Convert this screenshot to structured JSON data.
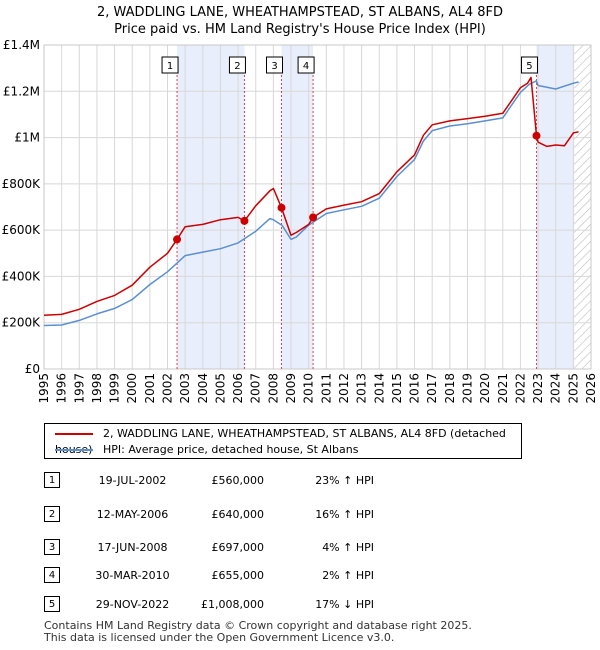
{
  "title": "2, WADDLING LANE, WHEATHAMPSTEAD, ST ALBANS, AL4 8FD",
  "subtitle": "Price paid vs. HM Land Registry's House Price Index (HPI)",
  "chart_data": {
    "type": "line",
    "title": "2, WADDLING LANE, WHEATHAMPSTEAD, ST ALBANS, AL4 8FD",
    "subtitle": "Price paid vs. HM Land Registry's House Price Index (HPI)",
    "xlim": [
      1995,
      2026
    ],
    "ylim": [
      0,
      1400000
    ],
    "x_ticks": [
      1995,
      1996,
      1997,
      1998,
      1999,
      2000,
      2001,
      2002,
      2003,
      2004,
      2005,
      2006,
      2007,
      2008,
      2009,
      2010,
      2011,
      2012,
      2013,
      2014,
      2015,
      2016,
      2017,
      2018,
      2019,
      2020,
      2021,
      2022,
      2023,
      2024,
      2025,
      2026
    ],
    "y_ticks": [
      {
        "value": 0,
        "label": "£0"
      },
      {
        "value": 200000,
        "label": "£200K"
      },
      {
        "value": 400000,
        "label": "£400K"
      },
      {
        "value": 600000,
        "label": "£600K"
      },
      {
        "value": 800000,
        "label": "£800K"
      },
      {
        "value": 1000000,
        "label": "£1M"
      },
      {
        "value": 1200000,
        "label": "£1.2M"
      },
      {
        "value": 1400000,
        "label": "£1.4M"
      }
    ],
    "grid": true,
    "colors": {
      "property": "#cc0000",
      "hpi": "#5b8fd0",
      "band": "#e8eefb",
      "vline": "#dd4444",
      "hatch": "#bbbbbb"
    },
    "series": [
      {
        "name": "2, WADDLING LANE, WHEATHAMPSTEAD, ST ALBANS, AL4 8FD (detached house)",
        "x": [
          1995.0,
          1996.0,
          1997.0,
          1998.0,
          1999.0,
          2000.0,
          2001.0,
          2002.0,
          2002.54,
          2003.0,
          2004.0,
          2005.0,
          2006.0,
          2006.36,
          2007.0,
          2007.8,
          2008.0,
          2008.46,
          2009.0,
          2009.3,
          2010.0,
          2010.25,
          2011.0,
          2012.0,
          2013.0,
          2014.0,
          2015.0,
          2016.0,
          2016.5,
          2017.0,
          2018.0,
          2019.0,
          2020.0,
          2021.0,
          2022.0,
          2022.4,
          2022.6,
          2022.91,
          2023.0,
          2023.5,
          2024.0,
          2024.5,
          2025.0,
          2025.3
        ],
        "values": [
          232000,
          236000,
          258000,
          292000,
          318000,
          362000,
          440000,
          500000,
          560000,
          615000,
          625000,
          645000,
          655000,
          640000,
          705000,
          770000,
          780000,
          697000,
          578000,
          590000,
          625000,
          655000,
          692000,
          708000,
          723000,
          758000,
          852000,
          925000,
          1010000,
          1055000,
          1072000,
          1082000,
          1092000,
          1105000,
          1215000,
          1235000,
          1260000,
          1008000,
          980000,
          962000,
          968000,
          965000,
          1020000,
          1025000
        ]
      },
      {
        "name": "HPI: Average price, detached house, St Albans",
        "x": [
          1995.0,
          1996.0,
          1997.0,
          1998.0,
          1999.0,
          2000.0,
          2001.0,
          2002.0,
          2003.0,
          2004.0,
          2005.0,
          2006.0,
          2007.0,
          2007.8,
          2008.0,
          2008.5,
          2009.0,
          2009.3,
          2010.0,
          2011.0,
          2012.0,
          2013.0,
          2014.0,
          2015.0,
          2016.0,
          2016.5,
          2017.0,
          2018.0,
          2019.0,
          2020.0,
          2021.0,
          2022.0,
          2022.5,
          2022.9,
          2023.0,
          2024.0,
          2025.0,
          2025.3
        ],
        "values": [
          188000,
          190000,
          210000,
          238000,
          262000,
          300000,
          365000,
          420000,
          490000,
          505000,
          520000,
          545000,
          595000,
          650000,
          645000,
          620000,
          560000,
          570000,
          622000,
          672000,
          688000,
          703000,
          738000,
          832000,
          905000,
          985000,
          1030000,
          1050000,
          1060000,
          1072000,
          1085000,
          1195000,
          1230000,
          1245000,
          1225000,
          1210000,
          1235000,
          1240000
        ]
      }
    ],
    "transactions": [
      {
        "num": "1",
        "x": 2002.54,
        "value": 560000
      },
      {
        "num": "2",
        "x": 2006.36,
        "value": 640000
      },
      {
        "num": "3",
        "x": 2008.46,
        "value": 697000
      },
      {
        "num": "4",
        "x": 2010.25,
        "value": 655000
      },
      {
        "num": "5",
        "x": 2022.91,
        "value": 1008000
      }
    ],
    "band_ranges": [
      [
        2002.54,
        2006.36
      ],
      [
        2008.46,
        2010.25
      ],
      [
        2022.91,
        2025.05
      ]
    ],
    "hatch_start": 2025.05
  },
  "legend": {
    "property_label": "2, WADDLING LANE, WHEATHAMPSTEAD, ST ALBANS, AL4 8FD (detached house)",
    "hpi_label": "HPI: Average price, detached house, St Albans"
  },
  "sales": [
    {
      "num": "1",
      "date": "19-JUL-2002",
      "price": "£560,000",
      "hpi": "23% ↑ HPI"
    },
    {
      "num": "2",
      "date": "12-MAY-2006",
      "price": "£640,000",
      "hpi": "16% ↑ HPI"
    },
    {
      "num": "3",
      "date": "17-JUN-2008",
      "price": "£697,000",
      "hpi": "4% ↑ HPI"
    },
    {
      "num": "4",
      "date": "30-MAR-2010",
      "price": "£655,000",
      "hpi": "2% ↑ HPI"
    },
    {
      "num": "5",
      "date": "29-NOV-2022",
      "price": "£1,008,000",
      "hpi": "17% ↓ HPI"
    }
  ],
  "footer": {
    "line1": "Contains HM Land Registry data © Crown copyright and database right 2025.",
    "line2": "This data is licensed under the Open Government Licence v3.0."
  }
}
